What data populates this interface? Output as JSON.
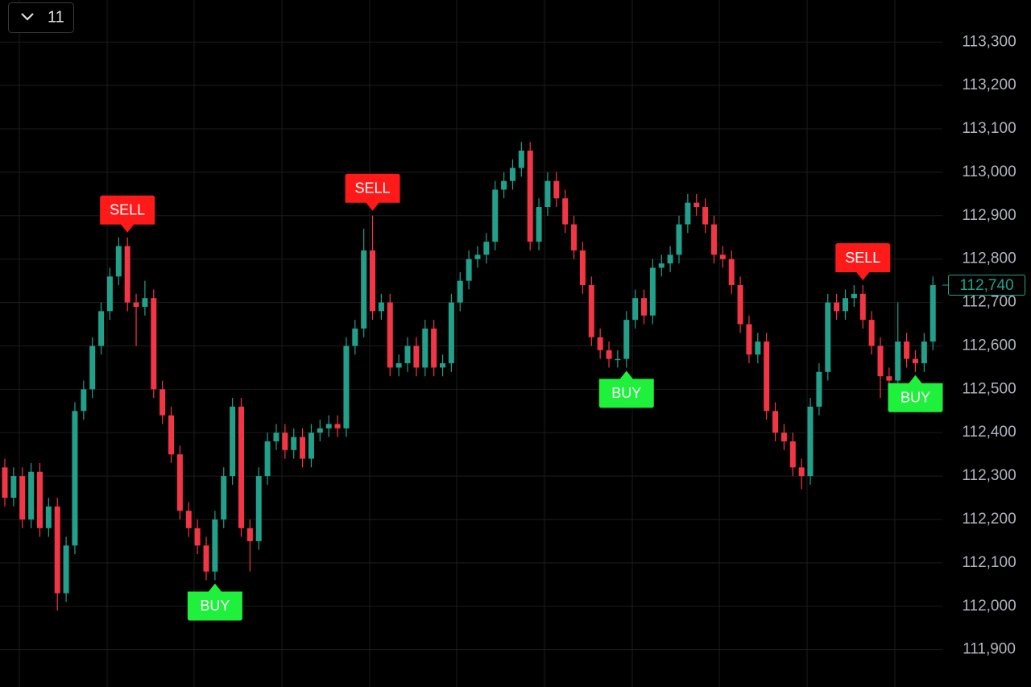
{
  "toolbar": {
    "label": "11"
  },
  "chart_data": {
    "type": "candlestick",
    "ylim": [
      111814,
      113397
    ],
    "yticks": [
      {
        "value": 111900,
        "label": "111,900"
      },
      {
        "value": 112000,
        "label": "112,000"
      },
      {
        "value": 112100,
        "label": "112,100"
      },
      {
        "value": 112200,
        "label": "112,200"
      },
      {
        "value": 112300,
        "label": "112,300"
      },
      {
        "value": 112400,
        "label": "112,400"
      },
      {
        "value": 112500,
        "label": "112,500"
      },
      {
        "value": 112600,
        "label": "112,600"
      },
      {
        "value": 112700,
        "label": "112,700"
      },
      {
        "value": 112800,
        "label": "112,800"
      },
      {
        "value": 112900,
        "label": "112,900"
      },
      {
        "value": 113000,
        "label": "113,000"
      },
      {
        "value": 113100,
        "label": "113,100"
      },
      {
        "value": 113200,
        "label": "113,200"
      },
      {
        "value": 113300,
        "label": "113,300"
      }
    ],
    "grid": true,
    "up_color": "#22a08a",
    "down_color": "#f23645",
    "buy_color": "#1ef03c",
    "sell_color": "#ff1a1a",
    "last_price": {
      "value": 112740,
      "label": "112,740"
    },
    "open": [
      112320,
      112250,
      112300,
      112200,
      112310,
      112180,
      112230,
      112030,
      112140,
      112450,
      112500,
      112600,
      112680,
      112760,
      112830,
      112700,
      112690,
      112710,
      112500,
      112440,
      112350,
      112220,
      112180,
      112140,
      112080,
      112200,
      112300,
      112460,
      112180,
      112150,
      112300,
      112380,
      112400,
      112360,
      112390,
      112340,
      112400,
      112410,
      112420,
      112410,
      112600,
      112640,
      112820,
      112680,
      112700,
      112550,
      112560,
      112600,
      112550,
      112640,
      112550,
      112560,
      112700,
      112750,
      112800,
      112810,
      112840,
      112960,
      112980,
      113010,
      113050,
      112840,
      112920,
      112980,
      112940,
      112880,
      112820,
      112740,
      112620,
      112590,
      112570,
      112570,
      112660,
      112710,
      112670,
      112780,
      112790,
      112810,
      112880,
      112930,
      112920,
      112880,
      112810,
      112800,
      112740,
      112650,
      112580,
      112610,
      112450,
      112400,
      112380,
      112320,
      112300,
      112460,
      112540,
      112700,
      112680,
      112710,
      112720,
      112660,
      112600,
      112530,
      112520,
      112610,
      112570,
      112560,
      112610
    ],
    "high": [
      112340,
      112320,
      112320,
      112330,
      112330,
      112250,
      112250,
      112160,
      112470,
      112520,
      112620,
      112700,
      112780,
      112850,
      112850,
      112720,
      112750,
      112730,
      112520,
      112460,
      112370,
      112240,
      112200,
      112160,
      112220,
      112320,
      112480,
      112480,
      112200,
      112320,
      112400,
      112420,
      112420,
      112410,
      112410,
      112420,
      112430,
      112440,
      112440,
      112620,
      112660,
      112870,
      112900,
      112720,
      112720,
      112580,
      112620,
      112620,
      112660,
      112660,
      112580,
      112720,
      112770,
      112820,
      112830,
      112860,
      112980,
      113000,
      113030,
      113070,
      113070,
      112940,
      113000,
      113000,
      112960,
      112900,
      112840,
      112760,
      112640,
      112610,
      112590,
      112680,
      112730,
      112730,
      112800,
      112810,
      112830,
      112900,
      112950,
      112950,
      112940,
      112900,
      112830,
      112820,
      112760,
      112670,
      112630,
      112630,
      112470,
      112420,
      112400,
      112340,
      112480,
      112560,
      112720,
      112720,
      112730,
      112740,
      112740,
      112680,
      112620,
      112550,
      112700,
      112630,
      112590,
      112630,
      112760
    ],
    "low": [
      112230,
      112230,
      112180,
      112180,
      112160,
      112160,
      111990,
      112010,
      112120,
      112430,
      112480,
      112580,
      112660,
      112740,
      112680,
      112600,
      112670,
      112480,
      112420,
      112330,
      112200,
      112160,
      112120,
      112060,
      112060,
      112180,
      112280,
      112160,
      112080,
      112130,
      112280,
      112360,
      112340,
      112340,
      112320,
      112320,
      112380,
      112390,
      112390,
      112390,
      112580,
      112620,
      112660,
      112660,
      112530,
      112530,
      112540,
      112530,
      112530,
      112530,
      112530,
      112540,
      112680,
      112730,
      112780,
      112790,
      112820,
      112940,
      112960,
      112990,
      112820,
      112820,
      112900,
      112920,
      112860,
      112800,
      112720,
      112600,
      112570,
      112550,
      112550,
      112550,
      112640,
      112650,
      112650,
      112760,
      112770,
      112790,
      112860,
      112900,
      112860,
      112790,
      112780,
      112720,
      112630,
      112560,
      112560,
      112430,
      112380,
      112360,
      112300,
      112270,
      112280,
      112440,
      112520,
      112660,
      112660,
      112690,
      112640,
      112580,
      112480,
      112500,
      112500,
      112550,
      112540,
      112540,
      112590
    ],
    "close": [
      112250,
      112300,
      112200,
      112310,
      112180,
      112230,
      112030,
      112140,
      112450,
      112500,
      112600,
      112680,
      112760,
      112830,
      112700,
      112690,
      112710,
      112500,
      112440,
      112350,
      112220,
      112180,
      112140,
      112080,
      112200,
      112300,
      112460,
      112180,
      112150,
      112300,
      112380,
      112400,
      112360,
      112390,
      112340,
      112400,
      112410,
      112420,
      112410,
      112600,
      112640,
      112820,
      112680,
      112700,
      112550,
      112560,
      112600,
      112550,
      112640,
      112550,
      112560,
      112700,
      112750,
      112800,
      112810,
      112840,
      112960,
      112980,
      113010,
      113050,
      112840,
      112920,
      112980,
      112940,
      112880,
      112820,
      112740,
      112620,
      112590,
      112570,
      112570,
      112660,
      112710,
      112670,
      112780,
      112790,
      112810,
      112880,
      112930,
      112920,
      112880,
      112810,
      112800,
      112740,
      112650,
      112580,
      112610,
      112450,
      112400,
      112380,
      112320,
      112300,
      112460,
      112540,
      112700,
      112680,
      112710,
      112720,
      112660,
      112600,
      112530,
      112520,
      112610,
      112570,
      112560,
      112610,
      112740
    ],
    "signals": [
      null,
      null,
      null,
      null,
      null,
      null,
      null,
      null,
      null,
      null,
      null,
      null,
      null,
      null,
      "SELL",
      null,
      null,
      null,
      null,
      null,
      null,
      null,
      null,
      null,
      "BUY",
      null,
      null,
      null,
      null,
      null,
      null,
      null,
      null,
      null,
      null,
      null,
      null,
      null,
      null,
      null,
      null,
      null,
      "SELL",
      null,
      null,
      null,
      null,
      null,
      null,
      null,
      null,
      null,
      null,
      null,
      null,
      null,
      null,
      null,
      null,
      null,
      null,
      null,
      null,
      null,
      null,
      null,
      null,
      null,
      null,
      null,
      null,
      "BUY",
      null,
      null,
      null,
      null,
      null,
      null,
      null,
      null,
      null,
      null,
      null,
      null,
      null,
      null,
      null,
      null,
      null,
      null,
      null,
      null,
      null,
      null,
      null,
      null,
      null,
      null,
      "SELL",
      null,
      null,
      null,
      null,
      null,
      "BUY",
      null,
      null
    ]
  }
}
